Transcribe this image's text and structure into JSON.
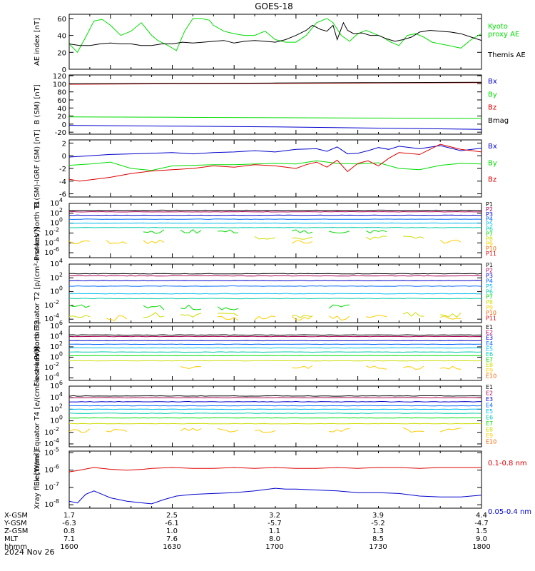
{
  "title": "GOES-18",
  "footer_date": "2024 Nov 26",
  "colors": {
    "black": "#000000",
    "blue": "#0000cc",
    "green": "#00dd00",
    "red": "#dd0000",
    "p": [
      "#000000",
      "#aa0055",
      "#0000cc",
      "#0066ff",
      "#00bbee",
      "#00ccaa",
      "#00dd00",
      "#ccdd00",
      "#ffcc00",
      "#ee6600",
      "#dd0000"
    ],
    "e": [
      "#000000",
      "#aa0055",
      "#0000cc",
      "#0066ff",
      "#00bbee",
      "#00ccaa",
      "#00dd00",
      "#ccdd00",
      "#ffcc00",
      "#ee6600",
      "#dd0000"
    ]
  },
  "ephemeris": {
    "labels": [
      "X-GSM",
      "Y-GSM",
      "Z-GSM",
      "MLT",
      "hhmm"
    ],
    "columns": [
      {
        "x": "1.7",
        "y": "-6.3",
        "z": "0.8",
        "mlt": "7.1",
        "hhmm": "1600"
      },
      {
        "x": "2.5",
        "y": "-6.1",
        "z": "1.0",
        "mlt": "7.6",
        "hhmm": "1630"
      },
      {
        "x": "3.2",
        "y": "-5.7",
        "z": "1.1",
        "mlt": "8.0",
        "hhmm": "1700"
      },
      {
        "x": "3.9",
        "y": "-5.2",
        "z": "1.3",
        "mlt": "8.5",
        "hhmm": "1730"
      },
      {
        "x": "4.4",
        "y": "-4.7",
        "z": "1.5",
        "mlt": "9.0",
        "hhmm": "1800"
      }
    ]
  },
  "chart_data": [
    {
      "type": "line",
      "ylabel": "AE index [nT]",
      "ylim": [
        0,
        65
      ],
      "ticks": [
        "0",
        "20",
        "40",
        "60"
      ],
      "xlim": [
        1600,
        1800
      ],
      "series": [
        {
          "name": "Kyoto proxy AE",
          "label_lines": [
            "Kyoto",
            "proxy AE"
          ],
          "color": "#00dd00",
          "x": [
            1600,
            1604,
            1608,
            1612,
            1616,
            1620,
            1625,
            1630,
            1635,
            1640,
            1643,
            1648,
            1652,
            1656,
            1660,
            1664,
            1668,
            1670,
            1675,
            1680,
            1685,
            1690,
            1695,
            1700,
            1705,
            1710,
            1715,
            1720,
            1725,
            1728,
            1732,
            1736,
            1740,
            1744,
            1748,
            1752,
            1756,
            1760,
            1764,
            1768,
            1772,
            1776,
            1780,
            1784,
            1790,
            1795,
            1800
          ],
          "y": [
            30,
            20,
            38,
            57,
            59,
            52,
            40,
            45,
            55,
            40,
            34,
            28,
            22,
            45,
            60,
            60,
            58,
            52,
            45,
            42,
            40,
            40,
            45,
            35,
            32,
            32,
            40,
            55,
            60,
            55,
            40,
            33,
            42,
            46,
            42,
            38,
            32,
            28,
            40,
            42,
            38,
            32,
            30,
            28,
            25,
            35,
            42
          ]
        },
        {
          "name": "Themis AE",
          "label_lines": [
            "Themis AE"
          ],
          "color": "#000000",
          "x": [
            1600,
            1605,
            1610,
            1615,
            1620,
            1625,
            1630,
            1635,
            1640,
            1645,
            1650,
            1655,
            1660,
            1665,
            1670,
            1675,
            1680,
            1685,
            1690,
            1695,
            1700,
            1705,
            1710,
            1715,
            1718,
            1722,
            1725,
            1728,
            1730,
            1733,
            1735,
            1738,
            1742,
            1746,
            1750,
            1754,
            1758,
            1762,
            1766,
            1770,
            1775,
            1780,
            1785,
            1790,
            1795,
            1800
          ],
          "y": [
            30,
            28,
            28,
            30,
            31,
            30,
            30,
            28,
            28,
            30,
            30,
            32,
            31,
            32,
            33,
            34,
            31,
            33,
            34,
            33,
            32,
            35,
            40,
            46,
            52,
            47,
            45,
            52,
            35,
            55,
            46,
            42,
            43,
            40,
            40,
            36,
            33,
            35,
            38,
            44,
            46,
            45,
            44,
            42,
            38,
            34
          ]
        }
      ]
    },
    {
      "type": "line",
      "ylabel": "B (SM) [nT]",
      "ylim": [
        -25,
        122
      ],
      "ticks": [
        "-20",
        "0",
        "20",
        "40",
        "60",
        "80",
        "100",
        "120"
      ],
      "xlim": [
        1600,
        1800
      ],
      "series": [
        {
          "name": "Bx",
          "color": "#0000cc",
          "x": [
            1600,
            1650,
            1700,
            1750,
            1800
          ],
          "y": [
            -3,
            -5,
            -7,
            -10,
            -13
          ]
        },
        {
          "name": "By",
          "color": "#00dd00",
          "x": [
            1600,
            1650,
            1700,
            1750,
            1800
          ],
          "y": [
            18,
            17,
            16,
            15,
            14
          ]
        },
        {
          "name": "Bz",
          "color": "#dd0000",
          "x": [
            1600,
            1650,
            1700,
            1750,
            1800
          ],
          "y": [
            99,
            100,
            101,
            102,
            103
          ]
        },
        {
          "name": "Bmag",
          "color": "#000000",
          "x": [
            1600,
            1650,
            1700,
            1750,
            1800
          ],
          "y": [
            100,
            101,
            102,
            103,
            104
          ]
        }
      ]
    },
    {
      "type": "line",
      "ylabel": "B (SM)-IGRF (SM) [nT]",
      "ylim": [
        -6.5,
        2.5
      ],
      "ticks": [
        "-6",
        "-4",
        "-2",
        "0",
        "2"
      ],
      "xlim": [
        1600,
        1800
      ],
      "series": [
        {
          "name": "Bx",
          "color": "#0000cc",
          "x": [
            1600,
            1610,
            1620,
            1630,
            1640,
            1650,
            1660,
            1670,
            1680,
            1690,
            1700,
            1710,
            1720,
            1725,
            1730,
            1735,
            1740,
            1745,
            1750,
            1755,
            1760,
            1770,
            1780,
            1790,
            1800
          ],
          "y": [
            -0.2,
            0.0,
            0.2,
            0.3,
            0.4,
            0.5,
            0.3,
            0.5,
            0.6,
            0.8,
            0.6,
            1.0,
            1.1,
            0.7,
            1.4,
            0.3,
            0.4,
            0.8,
            1.3,
            1.0,
            1.5,
            1.1,
            1.6,
            0.8,
            1.2
          ]
        },
        {
          "name": "By",
          "color": "#00dd00",
          "x": [
            1600,
            1610,
            1620,
            1630,
            1640,
            1650,
            1660,
            1670,
            1680,
            1690,
            1700,
            1710,
            1720,
            1730,
            1740,
            1750,
            1760,
            1770,
            1780,
            1790,
            1800
          ],
          "y": [
            -1.5,
            -1.3,
            -1.0,
            -2.0,
            -2.3,
            -1.6,
            -1.5,
            -1.4,
            -1.4,
            -1.3,
            -1.2,
            -1.3,
            -0.8,
            -1.2,
            -1.3,
            -1.1,
            -2.0,
            -2.2,
            -1.5,
            -1.2,
            -1.3
          ]
        },
        {
          "name": "Bz",
          "color": "#dd0000",
          "x": [
            1600,
            1605,
            1610,
            1620,
            1630,
            1640,
            1650,
            1660,
            1670,
            1680,
            1690,
            1700,
            1710,
            1715,
            1720,
            1725,
            1730,
            1735,
            1740,
            1745,
            1750,
            1755,
            1760,
            1770,
            1780,
            1790,
            1800
          ],
          "y": [
            -3.7,
            -4.0,
            -3.8,
            -3.4,
            -2.8,
            -2.4,
            -2.2,
            -2.0,
            -1.6,
            -1.8,
            -1.4,
            -1.6,
            -2.0,
            -1.4,
            -1.0,
            -1.8,
            -0.7,
            -2.5,
            -1.2,
            -0.8,
            -1.6,
            -0.4,
            0.5,
            0.2,
            1.8,
            1.0,
            0.6
          ]
        }
      ]
    },
    {
      "type": "line",
      "scale": "log",
      "ylabel": "Protons North T1",
      "ylim": [
        -7,
        4
      ],
      "ticks": [
        {
          "e": "4"
        },
        {
          "e": "2"
        },
        {
          "e": "0"
        },
        {
          "e": "-2"
        },
        {
          "e": "-4"
        },
        {
          "e": "-6"
        }
      ],
      "xlim": [
        1600,
        1800
      ],
      "channels": [
        "P1",
        "P2",
        "P3",
        "P4",
        "P5",
        "P6",
        "P7",
        "P8",
        "P9",
        "P10",
        "P11"
      ],
      "levels": [
        2.6,
        2.3,
        1.6,
        0.8,
        0.0,
        -0.9,
        -1.7,
        -3.0,
        -3.8,
        null,
        null
      ]
    },
    {
      "type": "line",
      "scale": "log",
      "ylabel": "Protons Equator T2 [p/(cm²-s-sr-keV)]",
      "ylim": [
        -4.5,
        4
      ],
      "ticks": [
        {
          "e": "4"
        },
        {
          "e": "2"
        },
        {
          "e": "0"
        },
        {
          "e": "-2"
        },
        {
          "e": "-4"
        }
      ],
      "xlim": [
        1600,
        1800
      ],
      "channels": [
        "P1",
        "P2",
        "P3",
        "P4",
        "P5",
        "P6",
        "P7",
        "P8",
        "P9",
        "P10",
        "P11"
      ],
      "levels": [
        2.6,
        2.3,
        1.6,
        0.8,
        -0.3,
        -1.0,
        -2.3,
        -3.4,
        -3.8,
        null,
        null
      ]
    },
    {
      "type": "line",
      "scale": "log",
      "ylabel": "Electrons North T3",
      "ylim": [
        -4.5,
        6
      ],
      "ticks": [
        {
          "e": "6"
        },
        {
          "e": "4"
        },
        {
          "e": "2"
        },
        {
          "e": "0"
        },
        {
          "e": "-2"
        },
        {
          "e": "-4"
        }
      ],
      "xlim": [
        1600,
        1800
      ],
      "channels": [
        "E1",
        "E2",
        "E3",
        "E4",
        "E5",
        "E6",
        "E7",
        "E8",
        "E9",
        "E10"
      ],
      "levels": [
        4.3,
        4.0,
        3.2,
        2.5,
        1.8,
        1.0,
        0.3,
        -0.7,
        -2.0,
        null
      ]
    },
    {
      "type": "line",
      "scale": "log",
      "ylabel": "Electrons Equator T4 [e/(cm²-s-sr-keV)]",
      "ylim": [
        -4.5,
        6
      ],
      "ticks": [
        {
          "e": "6"
        },
        {
          "e": "4"
        },
        {
          "e": "2"
        },
        {
          "e": "0"
        },
        {
          "e": "-2"
        },
        {
          "e": "-4"
        }
      ],
      "xlim": [
        1600,
        1800
      ],
      "channels": [
        "E1",
        "E2",
        "E3",
        "E4",
        "E5",
        "E6",
        "E7",
        "E8",
        "E9",
        "E10"
      ],
      "levels": [
        4.3,
        4.0,
        3.3,
        2.6,
        2.0,
        1.3,
        0.5,
        -0.5,
        -1.6,
        null
      ]
    },
    {
      "type": "line",
      "scale": "log",
      "ylabel": "Xray flux [W/m²]",
      "ylim": [
        -8.2,
        -4.9
      ],
      "ticks": [
        {
          "e": "-5"
        },
        {
          "e": "-6"
        },
        {
          "e": "-7"
        },
        {
          "e": "-8"
        }
      ],
      "xlim": [
        1600,
        1800
      ],
      "series": [
        {
          "name": "0.1-0.8 nm",
          "color": "#dd0000",
          "x": [
            1600,
            1605,
            1612,
            1620,
            1628,
            1636,
            1640,
            1650,
            1660,
            1670,
            1680,
            1690,
            1700,
            1710,
            1720,
            1730,
            1740,
            1750,
            1760,
            1770,
            1780,
            1790,
            1800
          ],
          "y": [
            -6.1,
            -6.0,
            -5.85,
            -5.95,
            -6.0,
            -5.95,
            -5.9,
            -5.85,
            -5.9,
            -5.9,
            -5.85,
            -5.9,
            -5.85,
            -5.9,
            -5.9,
            -5.85,
            -5.9,
            -5.85,
            -5.85,
            -5.9,
            -5.85,
            -5.85,
            -5.85
          ]
        },
        {
          "name": "0.05-0.4 nm",
          "color": "#0000cc",
          "x": [
            1600,
            1604,
            1608,
            1612,
            1616,
            1620,
            1628,
            1636,
            1640,
            1646,
            1652,
            1660,
            1670,
            1680,
            1690,
            1700,
            1705,
            1710,
            1720,
            1730,
            1740,
            1750,
            1760,
            1770,
            1780,
            1790,
            1800
          ],
          "y": [
            -7.8,
            -7.9,
            -7.4,
            -7.2,
            -7.4,
            -7.6,
            -7.8,
            -7.9,
            -7.95,
            -7.7,
            -7.5,
            -7.4,
            -7.35,
            -7.3,
            -7.2,
            -7.05,
            -7.1,
            -7.1,
            -7.15,
            -7.2,
            -7.3,
            -7.3,
            -7.35,
            -7.5,
            -7.55,
            -7.55,
            -7.45
          ]
        }
      ]
    }
  ]
}
